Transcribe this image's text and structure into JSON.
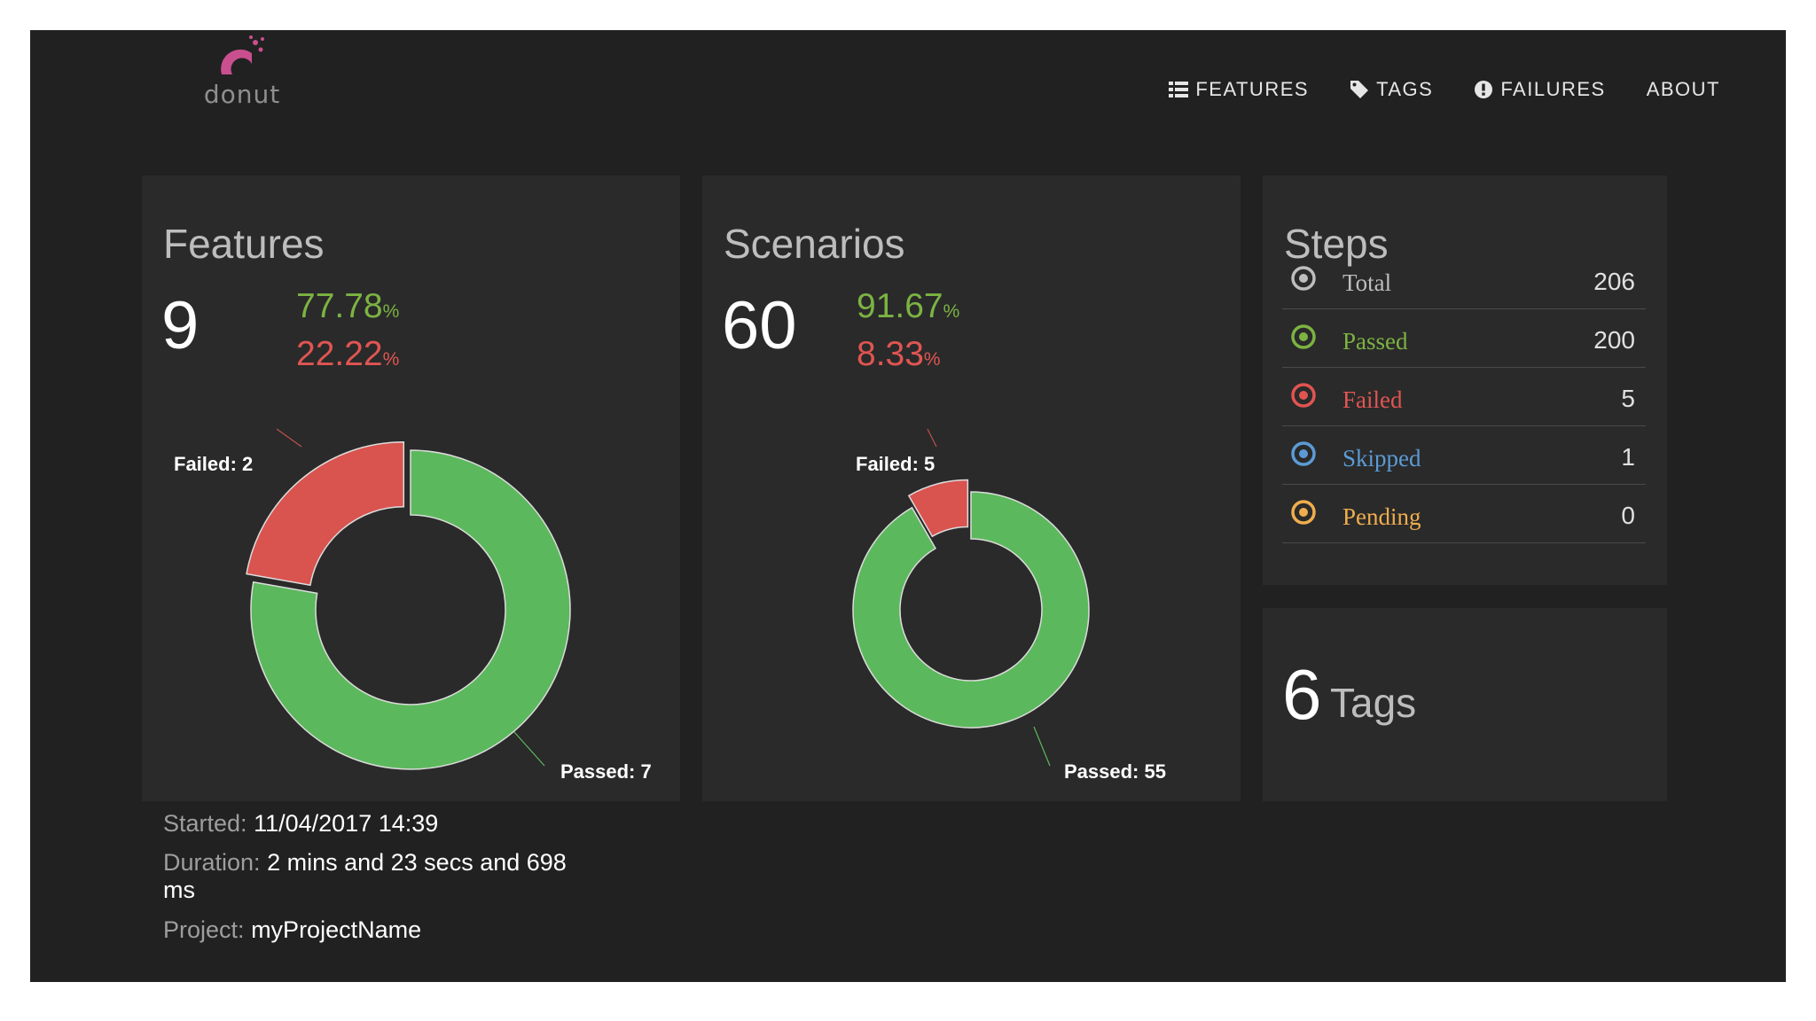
{
  "app": {
    "brand": "donut",
    "colors": {
      "passed": "#5cb85c",
      "failed": "#d9534f",
      "skipped": "#5b9bd5",
      "pending": "#f0ad4e",
      "total": "#bdbdbd",
      "accent": "#c94f8f"
    }
  },
  "nav": {
    "items": [
      {
        "label": "FEATURES",
        "icon": "list-icon"
      },
      {
        "label": "TAGS",
        "icon": "tag-icon"
      },
      {
        "label": "FAILURES",
        "icon": "exclamation-circle-icon"
      },
      {
        "label": "ABOUT",
        "icon": ""
      }
    ]
  },
  "features": {
    "title": "Features",
    "count": "9",
    "passed_pct": "77.78",
    "failed_pct": "22.22",
    "pct_sign": "%",
    "labels": {
      "failed": "Failed: 2",
      "passed": "Passed: 7"
    }
  },
  "scenarios": {
    "title": "Scenarios",
    "count": "60",
    "passed_pct": "91.67",
    "failed_pct": "8.33",
    "pct_sign": "%",
    "labels": {
      "failed": "Failed: 5",
      "passed": "Passed: 55"
    }
  },
  "chart_data": [
    {
      "type": "pie",
      "title": "Features",
      "categories": [
        "Passed",
        "Failed"
      ],
      "values": [
        7,
        2
      ],
      "colors": [
        "#5cb85c",
        "#d9534f"
      ]
    },
    {
      "type": "pie",
      "title": "Scenarios",
      "categories": [
        "Passed",
        "Failed"
      ],
      "values": [
        55,
        5
      ],
      "colors": [
        "#5cb85c",
        "#d9534f"
      ]
    }
  ],
  "steps": {
    "title": "Steps",
    "rows": [
      {
        "name": "Total",
        "value": "206",
        "color": "#bdbdbd"
      },
      {
        "name": "Passed",
        "value": "200",
        "color": "#7cb342"
      },
      {
        "name": "Failed",
        "value": "5",
        "color": "#e05552"
      },
      {
        "name": "Skipped",
        "value": "1",
        "color": "#5b9bd5"
      },
      {
        "name": "Pending",
        "value": "0",
        "color": "#f0ad4e"
      }
    ]
  },
  "tags": {
    "count": "6",
    "label": "Tags"
  },
  "run": {
    "started_label": "Started:",
    "started": "11/04/2017 14:39",
    "duration_label": "Duration:",
    "duration": "2 mins and 23 secs and 698 ms",
    "project_label": "Project:",
    "project": "myProjectName"
  }
}
